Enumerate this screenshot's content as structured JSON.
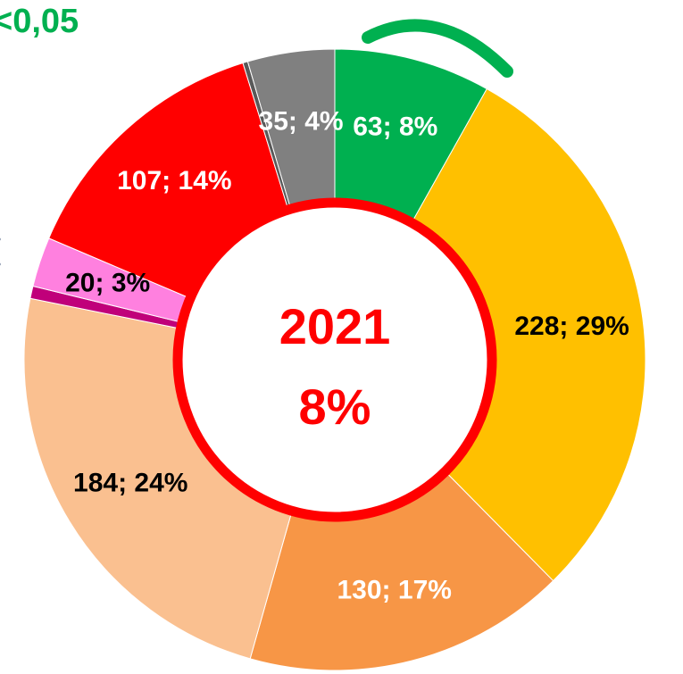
{
  "chart_data": {
    "type": "donut",
    "title": "<0,05",
    "center_labels": [
      "2021",
      "8%"
    ],
    "values": [
      63,
      228,
      130,
      184,
      5,
      20,
      107,
      2,
      35
    ],
    "value_labels": [
      "63; 8%",
      "228; 29%",
      "130; 17%",
      "184; 24%",
      null,
      "20; 3%",
      "107; 14%",
      null,
      "35; 4%"
    ],
    "colors": [
      "#00b050",
      "#ffc000",
      "#f79646",
      "#fac090",
      "#c0007a",
      "#ff80df",
      "#ff0000",
      "#595959",
      "#808080"
    ]
  }
}
